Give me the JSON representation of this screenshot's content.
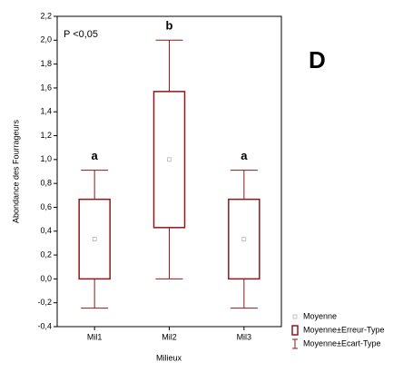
{
  "chart_data": {
    "type": "box",
    "panel_label": "D",
    "annotation": "P <0,05",
    "x_label": "Milieux",
    "y_label": "Abondance des Fourrageurs",
    "categories": [
      "Mil1",
      "Mil2",
      "Mil3"
    ],
    "group_labels": [
      "a",
      "b",
      "a"
    ],
    "color": "#8b1a1a",
    "mean": {
      "name": "Moyenne",
      "values": [
        0.333,
        1.0,
        0.333
      ]
    },
    "se": {
      "name": "Moyenne±Erreur-Type",
      "low": [
        0.0,
        0.43,
        0.0
      ],
      "high": [
        0.667,
        1.57,
        0.667
      ]
    },
    "sd": {
      "name": "Moyenne±Ecart-Type",
      "low": [
        -0.245,
        0.0,
        -0.245
      ],
      "high": [
        0.91,
        2.0,
        0.91
      ]
    },
    "ylim": [
      -0.4,
      2.2
    ],
    "yticks": [
      {
        "value": -0.4,
        "label": "-0,4"
      },
      {
        "value": -0.2,
        "label": "-0,2"
      },
      {
        "value": 0,
        "label": "0,0"
      },
      {
        "value": 0.2,
        "label": "0,2"
      },
      {
        "value": 0.4,
        "label": "0,4"
      },
      {
        "value": 0.6,
        "label": "0,6"
      },
      {
        "value": 0.8,
        "label": "0,8"
      },
      {
        "value": 1.0,
        "label": "1,0"
      },
      {
        "value": 1.2,
        "label": "1,2"
      },
      {
        "value": 1.4,
        "label": "1,4"
      },
      {
        "value": 1.6,
        "label": "1,6"
      },
      {
        "value": 1.8,
        "label": "1,8"
      },
      {
        "value": 2.0,
        "label": "2,0"
      },
      {
        "value": 2.2,
        "label": "2,2"
      }
    ],
    "grid": false
  }
}
